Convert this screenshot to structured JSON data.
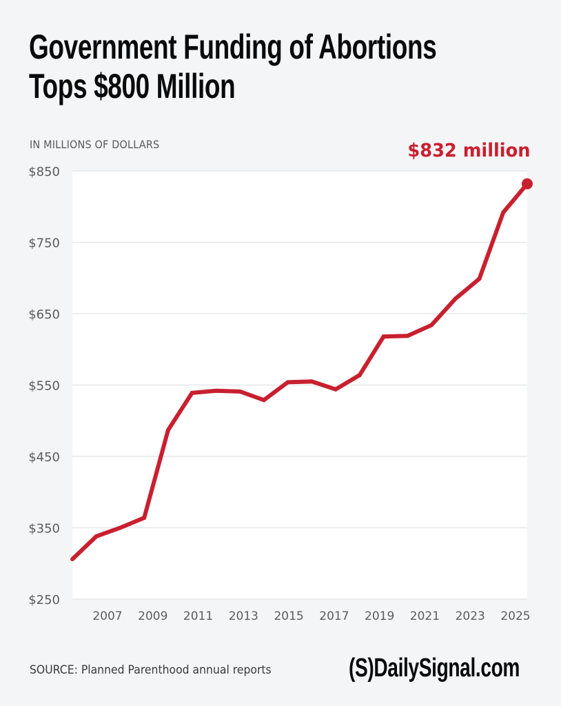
{
  "header": {
    "title_line1": "Government Funding of Abortions",
    "title_line2": "Tops $800 Million",
    "units_label": "IN MILLIONS OF DOLLARS",
    "callout": "$832 million"
  },
  "footer": {
    "source": "SOURCE:  Planned Parenthood annual reports",
    "brand": "(S)DailySignal.com"
  },
  "colors": {
    "line": "#c8202f",
    "background": "#f4f5f7",
    "plot_background": "#ffffff",
    "grid": "#e6e7ea",
    "text": "#5c5c5c"
  },
  "chart_data": {
    "type": "line",
    "title": "Government Funding of Abortions Tops $800 Million",
    "xlabel": "",
    "ylabel": "IN MILLIONS OF DOLLARS",
    "x": [
      2006,
      2007,
      2008,
      2009,
      2010,
      2011,
      2012,
      2013,
      2014,
      2015,
      2016,
      2017,
      2018,
      2019,
      2020,
      2021,
      2022,
      2023,
      2024,
      2025
    ],
    "series": [
      {
        "name": "Government funding",
        "values": [
          306,
          338,
          350,
          364,
          487,
          539,
          542,
          541,
          529,
          554,
          555,
          544,
          564,
          618,
          619,
          634,
          671,
          699,
          792,
          832
        ]
      }
    ],
    "ylim": [
      250,
      850
    ],
    "xlim": [
      2006,
      2025
    ],
    "yticks": [
      250,
      350,
      450,
      550,
      650,
      750,
      850
    ],
    "ytick_labels": [
      "$250",
      "$350",
      "$450",
      "$550",
      "$650",
      "$750",
      "$850"
    ],
    "xticks": [
      2007,
      2009,
      2011,
      2013,
      2015,
      2017,
      2019,
      2021,
      2023,
      2025
    ],
    "xtick_labels": [
      "2007",
      "2009",
      "2011",
      "2013",
      "2015",
      "2017",
      "2019",
      "2021",
      "2023",
      "2025"
    ],
    "annotations": [
      {
        "x": 2025,
        "y": 832,
        "text": "$832 million"
      }
    ],
    "grid": true,
    "legend": "none"
  }
}
